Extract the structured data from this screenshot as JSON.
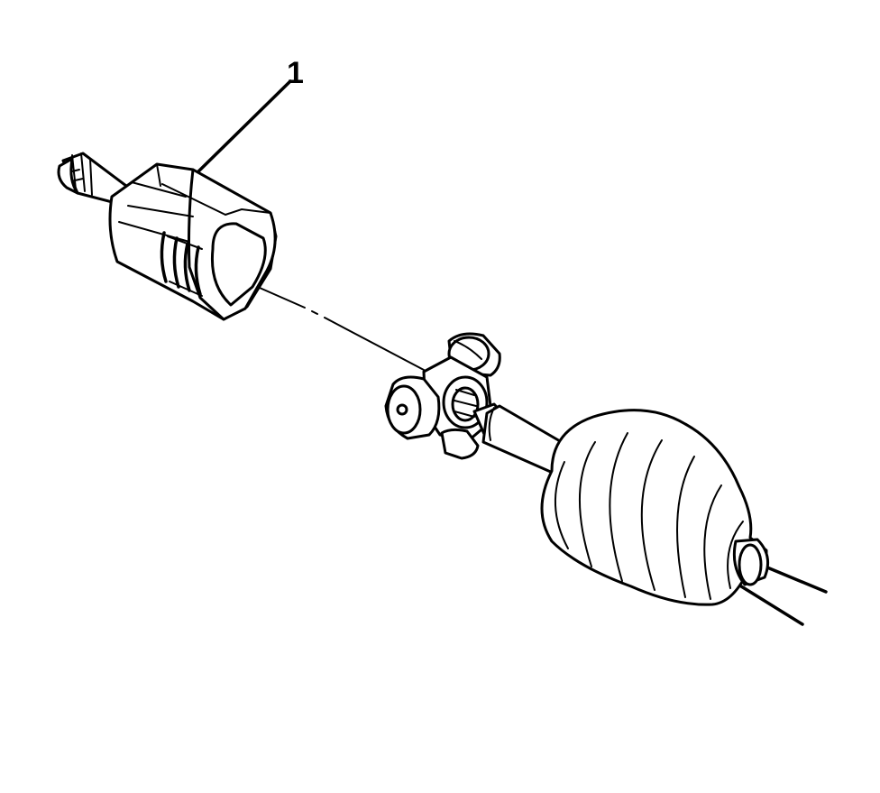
{
  "diagram": {
    "callouts": [
      {
        "label": "1",
        "target": "outer-housing"
      }
    ],
    "colors": {
      "line": "#000000",
      "fill": "#ffffff",
      "background": "#ffffff"
    }
  }
}
